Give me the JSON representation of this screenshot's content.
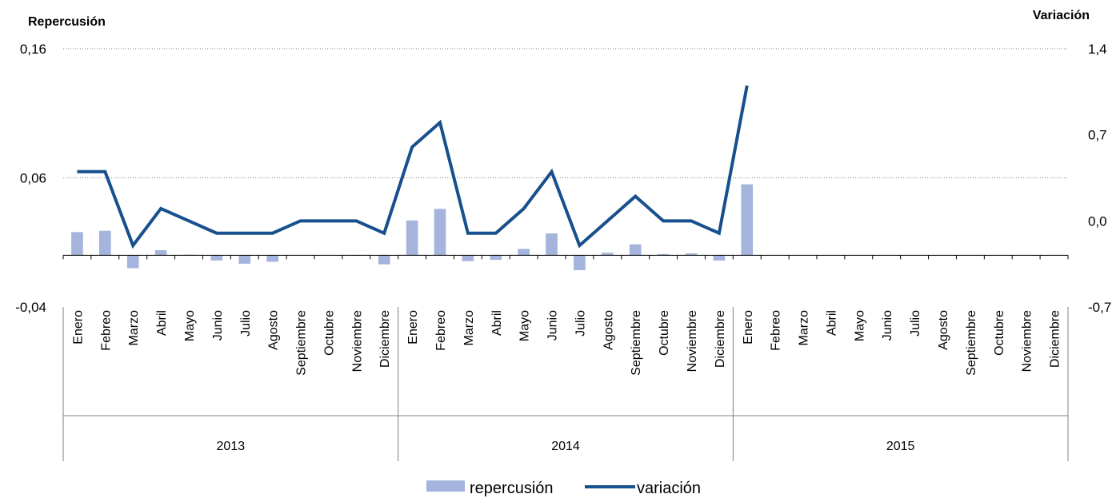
{
  "chart_data": {
    "type": "bar",
    "left_axis_title": "Repercusión",
    "right_axis_title": "Variación",
    "left_ticks": [
      "0,16",
      "0,06",
      "-0,04"
    ],
    "right_ticks": [
      "1,4",
      "0,7",
      "0,0",
      "-0,7"
    ],
    "ylim_left": [
      -0.04,
      0.16
    ],
    "ylim_right": [
      -0.7,
      1.4
    ],
    "years": [
      {
        "label": "2013",
        "months": [
          "Enero",
          "Febreo",
          "Marzo",
          "Abril",
          "Mayo",
          "Junio",
          "Julio",
          "Agosto",
          "Septiembre",
          "Octubre",
          "Noviembre",
          "Diciembre"
        ]
      },
      {
        "label": "2014",
        "months": [
          "Enero",
          "Febreo",
          "Marzo",
          "Abril",
          "Mayo",
          "Junio",
          "Julio",
          "Agosto",
          "Septiembre",
          "Octubre",
          "Noviembre",
          "Diciembre"
        ]
      },
      {
        "label": "2015",
        "months": [
          "Enero",
          "Febreo",
          "Marzo",
          "Abril",
          "Mayo",
          "Junio",
          "Julio",
          "Agosto",
          "Septiembre",
          "Octubre",
          "Noviembre",
          "Diciembre"
        ]
      }
    ],
    "series": [
      {
        "name": "repercusión",
        "type": "bar",
        "axis": "left",
        "color": "#a5b4dc",
        "values": [
          0.018,
          0.019,
          -0.01,
          0.004,
          0.0005,
          -0.004,
          -0.0065,
          -0.005,
          0.0,
          0.0,
          0.0003,
          -0.007,
          0.027,
          0.036,
          -0.0045,
          -0.0035,
          0.005,
          0.017,
          -0.0115,
          0.002,
          0.0085,
          0.001,
          0.0015,
          -0.004,
          0.055,
          null,
          null,
          null,
          null,
          null,
          null,
          null,
          null,
          null,
          null,
          null
        ]
      },
      {
        "name": "variación",
        "type": "line",
        "axis": "right",
        "color": "#17508c",
        "values": [
          0.4,
          0.4,
          -0.2,
          0.1,
          0.0,
          -0.1,
          -0.1,
          -0.1,
          0.0,
          0.0,
          0.0,
          -0.1,
          0.6,
          0.8,
          -0.1,
          -0.1,
          0.1,
          0.4,
          -0.2,
          0.0,
          0.2,
          0.0,
          0.0,
          -0.1,
          1.1,
          null,
          null,
          null,
          null,
          null,
          null,
          null,
          null,
          null,
          null,
          null
        ]
      }
    ],
    "grid": "horizontal dotted",
    "legend_position": "bottom"
  }
}
